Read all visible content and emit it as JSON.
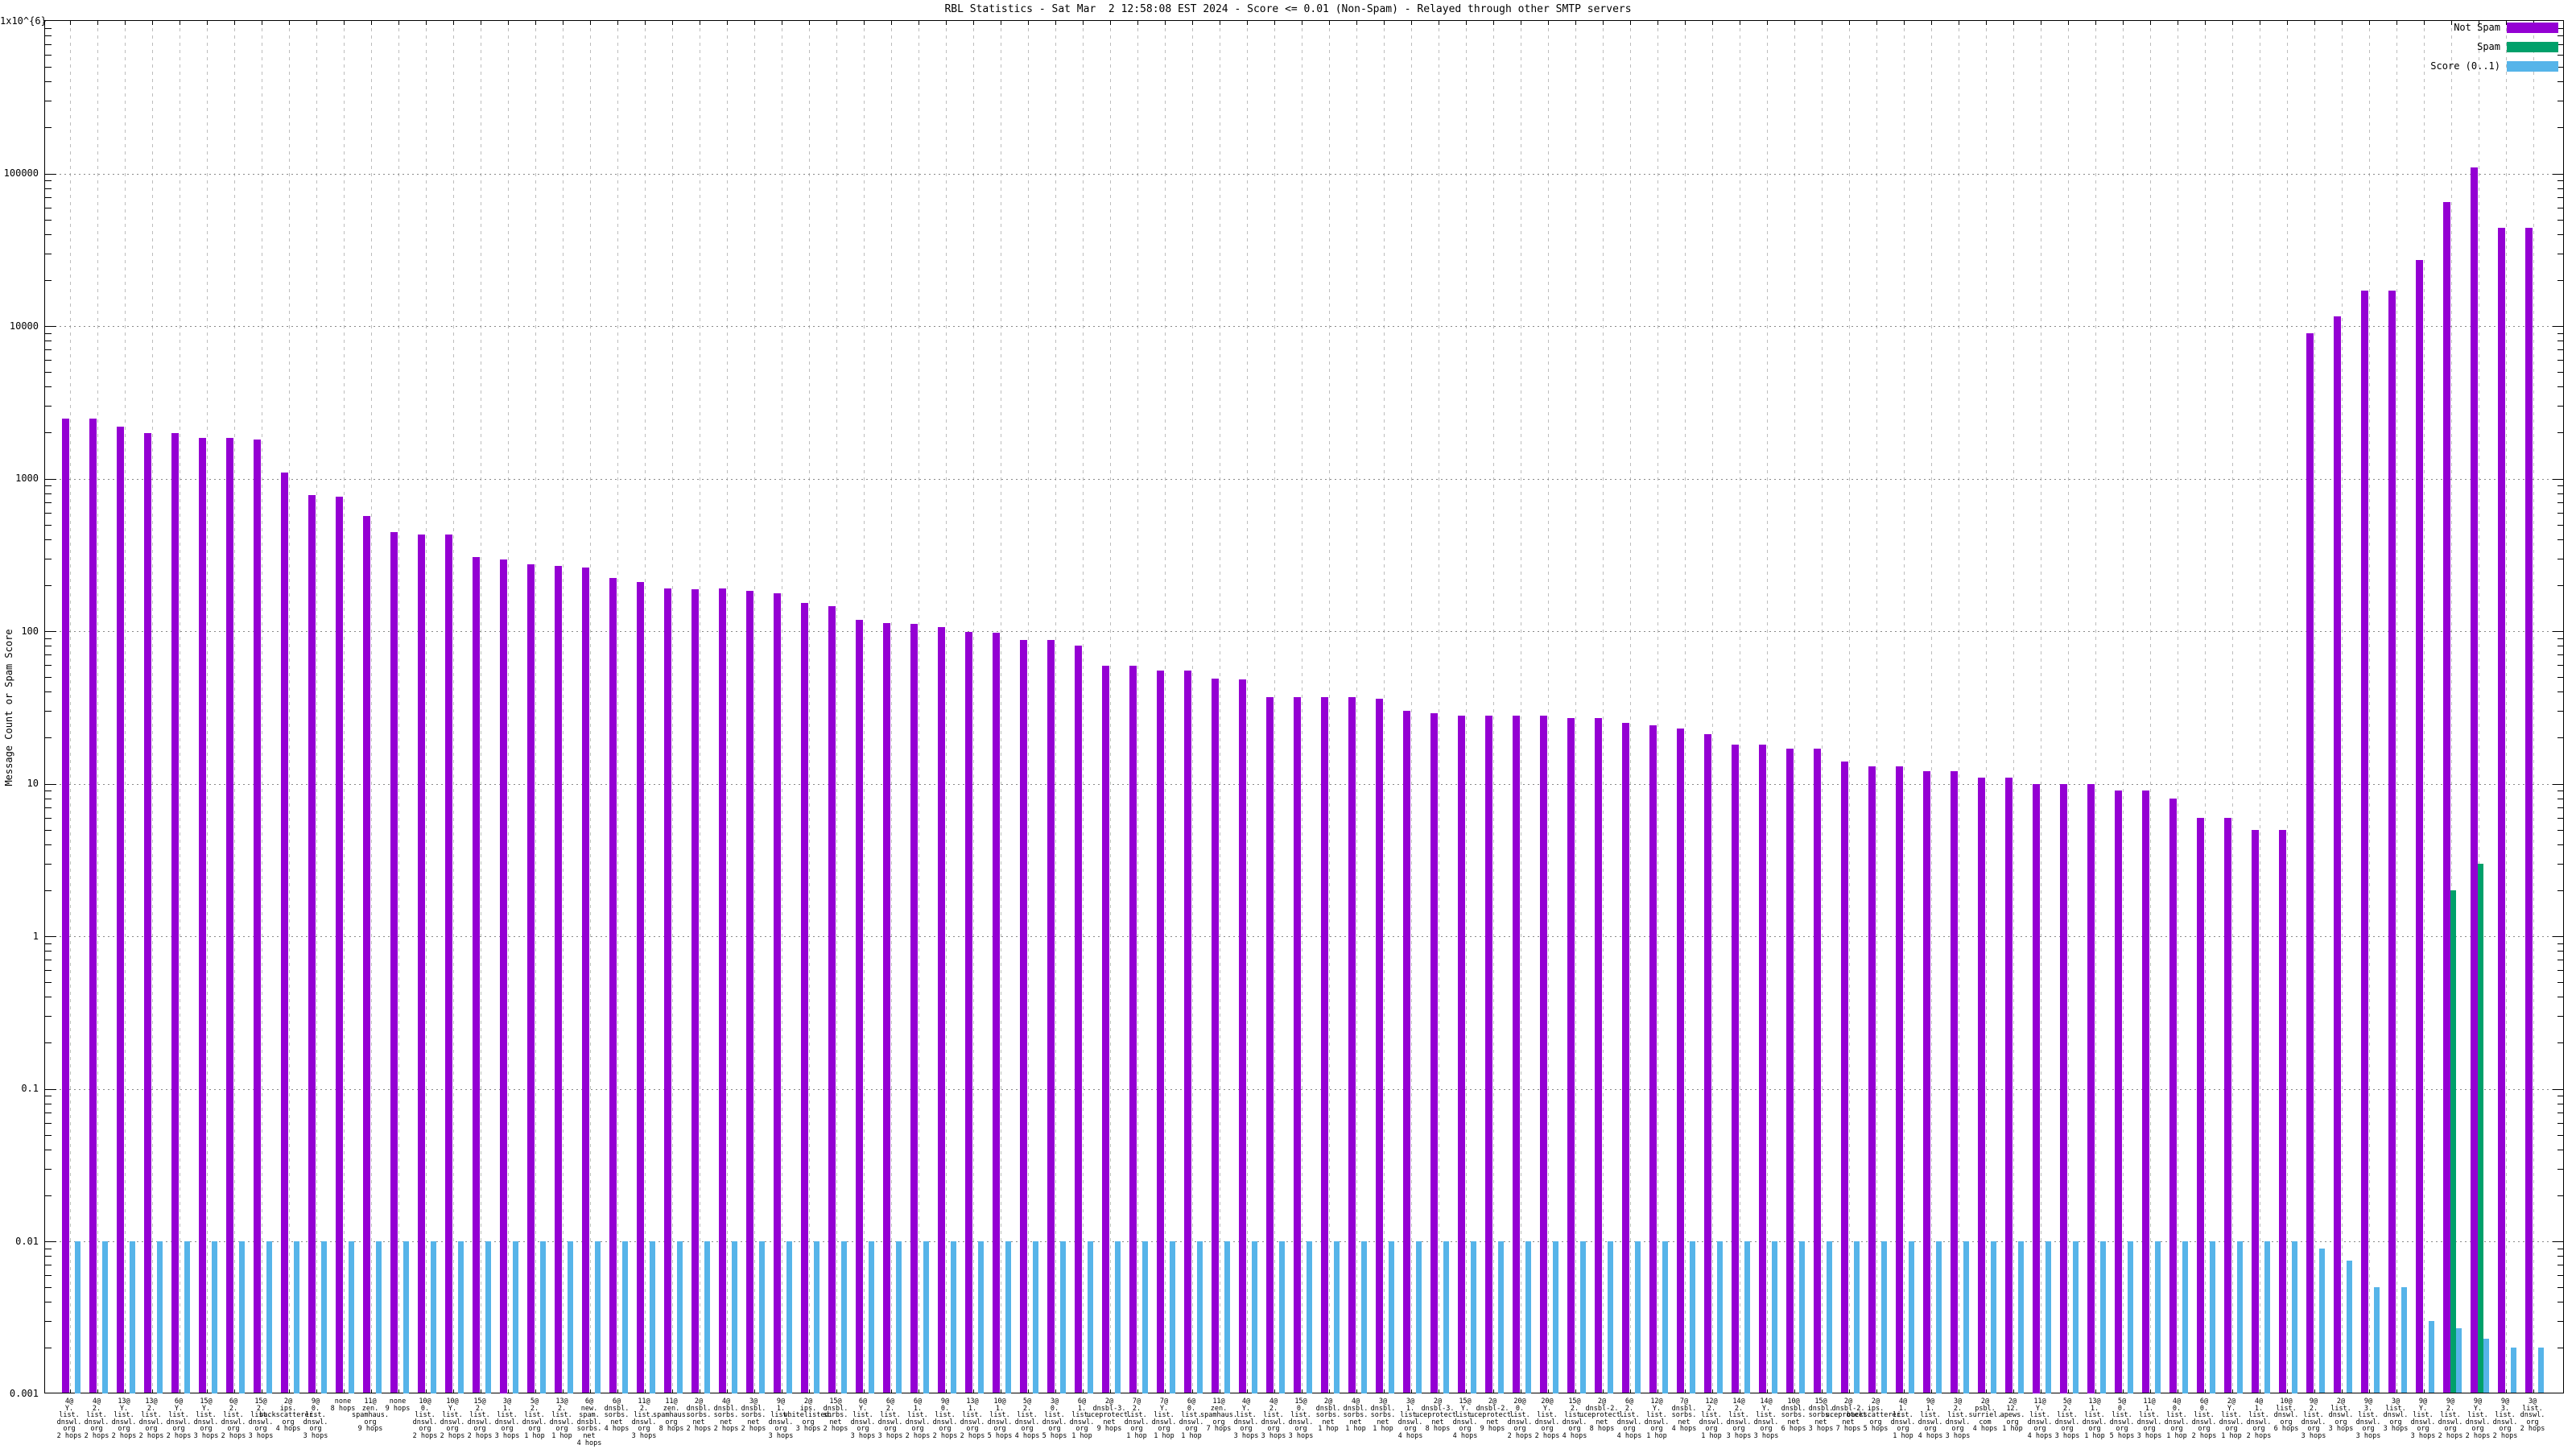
{
  "title": "RBL Statistics - Sat Mar  2 12:58:08 EST 2024 - Score <= 0.01 (Non-Spam) - Relayed through other SMTP servers",
  "y_axis": {
    "title": "Message Count or Spam Score",
    "tick_labels": [
      "1x10^{6}",
      "100000",
      "10000",
      "1000",
      "100",
      "10",
      "1",
      "0.1",
      "0.01",
      "0.001"
    ]
  },
  "legend": [
    {
      "label": "Not Spam",
      "color": "#9400d3"
    },
    {
      "label": "Spam",
      "color": "#00a06a"
    },
    {
      "label": "Score (0..1)",
      "color": "#56b4e9"
    }
  ],
  "chart_data": {
    "type": "bar",
    "y_scale": "log",
    "ylim": [
      0.001,
      1000000
    ],
    "grid": true,
    "legend_position": "top-right",
    "title": "RBL Statistics - Sat Mar  2 12:58:08 EST 2024 - Score <= 0.01 (Non-Spam) - Relayed through other SMTP servers",
    "ylabel": "Message Count or Spam Score",
    "categories": [
      "4@/Y./list./dnswl./org/2 hops",
      "4@/2./list./dnswl./org/2 hops",
      "13@/Y./list./dnswl./org/2 hops",
      "13@/2./list./dnswl./org/2 hops",
      "6@/Y./list./dnswl./org/2 hops",
      "15@/Y./list./dnswl./org/3 hops",
      "6@/2./list./dnswl./org/2 hops",
      "15@/2./list./dnswl./org/3 hops",
      "2@/ips./backscatterer./org/4 hops",
      "9@/0./list./dnswl./org/3 hops",
      "none/8 hops",
      "11@/zen./spamhaus./org/9 hops",
      "none/9 hops",
      "10@/0./list./dnswl./org/2 hops",
      "10@/Y./list./dnswl./org/2 hops",
      "15@/2./list./dnswl./org/2 hops",
      "3@/1./list./dnswl./org/3 hops",
      "5@/2./list./dnswl./org/1 hop",
      "13@/2./list./dnswl./org/1 hop",
      "6@/new./spam./dnsbl./sorbs./net/4 hops",
      "6@/dnsbl./sorbs./net/4 hops",
      "11@/2./list./dnswl./org/3 hops",
      "11@/zen./spamhaus./org/8 hops",
      "2@/dnsbl./sorbs./net/2 hops",
      "4@/dnsbl./sorbs./net/2 hops",
      "3@/dnsbl./sorbs./net/2 hops",
      "9@/1./list./dnswl./org/3 hops",
      "2@/ips./whitelisted./org/3 hops",
      "15@/dnsbl./sorbs./net/2 hops",
      "6@/Y./list./dnswl./org/3 hops",
      "6@/2./list./dnswl./org/3 hops",
      "6@/1./list./dnswl./org/2 hops",
      "9@/0./list./dnswl./org/2 hops",
      "13@/1./list./dnswl./org/2 hops",
      "10@/1./list./dnswl./org/5 hops",
      "5@/2./list./dnswl./org/4 hops",
      "3@/0./list./dnswl./org/5 hops",
      "6@/1./list./dnswl./org/1 hop",
      "2@/dnsbl-3./uceprotect./net/9 hops",
      "7@/2./list./dnswl./org/1 hop",
      "7@/Y./list./dnswl./org/1 hop",
      "6@/0./list./dnswl./org/1 hop",
      "11@/zen./spamhaus./org/7 hops",
      "4@/Y./list./dnswl./org/3 hops",
      "4@/2./list./dnswl./org/3 hops",
      "15@/0./list./dnswl./org/3 hops",
      "2@/dnsbl./sorbs./net/1 hop",
      "4@/dnsbl./sorbs./net/1 hop",
      "3@/dnsbl./sorbs./net/1 hop",
      "3@/1./list./dnswl./org/4 hops",
      "2@/dnsbl-3./uceprotect./net/8 hops",
      "15@/Y./list./dnswl./org/4 hops",
      "2@/dnsbl-2./uceprotect./net/9 hops",
      "20@/0./list./dnswl./org/2 hops",
      "20@/Y./list./dnswl./org/2 hops",
      "15@/2./list./dnswl./org/4 hops",
      "2@/dnsbl-2./uceprotect./net/8 hops",
      "6@/2./list./dnswl./org/4 hops",
      "12@/Y./list./dnswl./org/1 hop",
      "7@/dnsbl./sorbs./net/4 hops",
      "12@/2./list./dnswl./org/1 hop",
      "14@/2./list./dnswl./org/3 hops",
      "14@/Y./list./dnswl./org/3 hops",
      "10@/dnsbl./sorbs./net/6 hops",
      "15@/dnsbl./sorbs./net/3 hops",
      "2@/dnsbl-2./uceprotect./net/7 hops",
      "2@/ips./backscatterer./org/5 hops",
      "4@/1./list./dnswl./org/1 hop",
      "9@/1./list./dnswl./org/4 hops",
      "3@/2./list./dnswl./org/3 hops",
      "2@/psbl./surriel./com/4 hops",
      "2@/12./apews./org/1 hop",
      "11@/Y./list./dnswl./org/4 hops",
      "5@/2./list./dnswl./org/3 hops",
      "13@/1./list./dnswl./org/1 hop",
      "5@/0./list./dnswl./org/5 hops",
      "11@/1./list./dnswl./org/3 hops",
      "4@/0./list./dnswl./org/1 hop",
      "6@/0./list./dnswl./org/2 hops",
      "2@/Y./list./dnswl./org/1 hop",
      "4@/1./list./dnswl./org/2 hops",
      "10@/list./dnswl./org/6 hops",
      "9@/2./list./dnswl./org/3 hops",
      "2@/list./dnswl./org/3 hops",
      "9@/3./list./dnswl./org/3 hops",
      "3@/list./dnswl./org/3 hops",
      "9@/Y./list./dnswl./org/3 hops",
      "9@/2./list./dnswl./org/2 hops",
      "9@/Y./list./dnswl./org/2 hops",
      "9@/3./list./dnswl./org/2 hops",
      "3@/list./dnswl./org/2 hops"
    ],
    "series": [
      {
        "name": "Not Spam",
        "color": "#9400d3",
        "values": [
          2480,
          2480,
          2180,
          1980,
          1980,
          1840,
          1840,
          1800,
          1100,
          780,
          760,
          565,
          445,
          430,
          430,
          305,
          295,
          275,
          268,
          262,
          224,
          210,
          190,
          189,
          190,
          183,
          178,
          153,
          145,
          118,
          113,
          112,
          106,
          99,
          98,
          88,
          87,
          80,
          59,
          59,
          55,
          55,
          49,
          48,
          37,
          37,
          37,
          37,
          36,
          30,
          29,
          28,
          28,
          28,
          28,
          27,
          27,
          25,
          24,
          23,
          21,
          18,
          18,
          17,
          17,
          14,
          13,
          13,
          12,
          12,
          11,
          11,
          10,
          10,
          10,
          9,
          9,
          8,
          6,
          6,
          5,
          5,
          9000,
          11500,
          17000,
          17000,
          27000,
          65000,
          110000,
          44000,
          44000
        ]
      },
      {
        "name": "Spam",
        "color": "#00a06a",
        "values": [
          0,
          0,
          0,
          0,
          0,
          0,
          0,
          0,
          0,
          0,
          0,
          0,
          0,
          0,
          0,
          0,
          0,
          0,
          0,
          0,
          0,
          0,
          0,
          0,
          0,
          0,
          0,
          0,
          0,
          0,
          0,
          0,
          0,
          0,
          0,
          0,
          0,
          0,
          0,
          0,
          0,
          0,
          0,
          0,
          0,
          0,
          0,
          0,
          0,
          0,
          0,
          0,
          0,
          0,
          0,
          0,
          0,
          0,
          0,
          0,
          0,
          0,
          0,
          0,
          0,
          0,
          0,
          0,
          0,
          0,
          0,
          0,
          0,
          0,
          0,
          0,
          0,
          0,
          0,
          0,
          0,
          0,
          0,
          0,
          0,
          0,
          0,
          2,
          3,
          0,
          0
        ]
      },
      {
        "name": "Score (0..1)",
        "color": "#56b4e9",
        "values": [
          0.01,
          0.01,
          0.01,
          0.01,
          0.01,
          0.01,
          0.01,
          0.01,
          0.01,
          0.01,
          0.01,
          0.01,
          0.01,
          0.01,
          0.01,
          0.01,
          0.01,
          0.01,
          0.01,
          0.01,
          0.01,
          0.01,
          0.01,
          0.01,
          0.01,
          0.01,
          0.01,
          0.01,
          0.01,
          0.01,
          0.01,
          0.01,
          0.01,
          0.01,
          0.01,
          0.01,
          0.01,
          0.01,
          0.01,
          0.01,
          0.01,
          0.01,
          0.01,
          0.01,
          0.01,
          0.01,
          0.01,
          0.01,
          0.01,
          0.01,
          0.01,
          0.01,
          0.01,
          0.01,
          0.01,
          0.01,
          0.01,
          0.01,
          0.01,
          0.01,
          0.01,
          0.01,
          0.01,
          0.01,
          0.01,
          0.01,
          0.01,
          0.01,
          0.01,
          0.01,
          0.01,
          0.01,
          0.01,
          0.01,
          0.01,
          0.01,
          0.01,
          0.01,
          0.01,
          0.01,
          0.01,
          0.01,
          0.009,
          0.0075,
          0.005,
          0.005,
          0.003,
          0.0027,
          0.0023,
          0.002,
          0.002
        ]
      }
    ]
  }
}
